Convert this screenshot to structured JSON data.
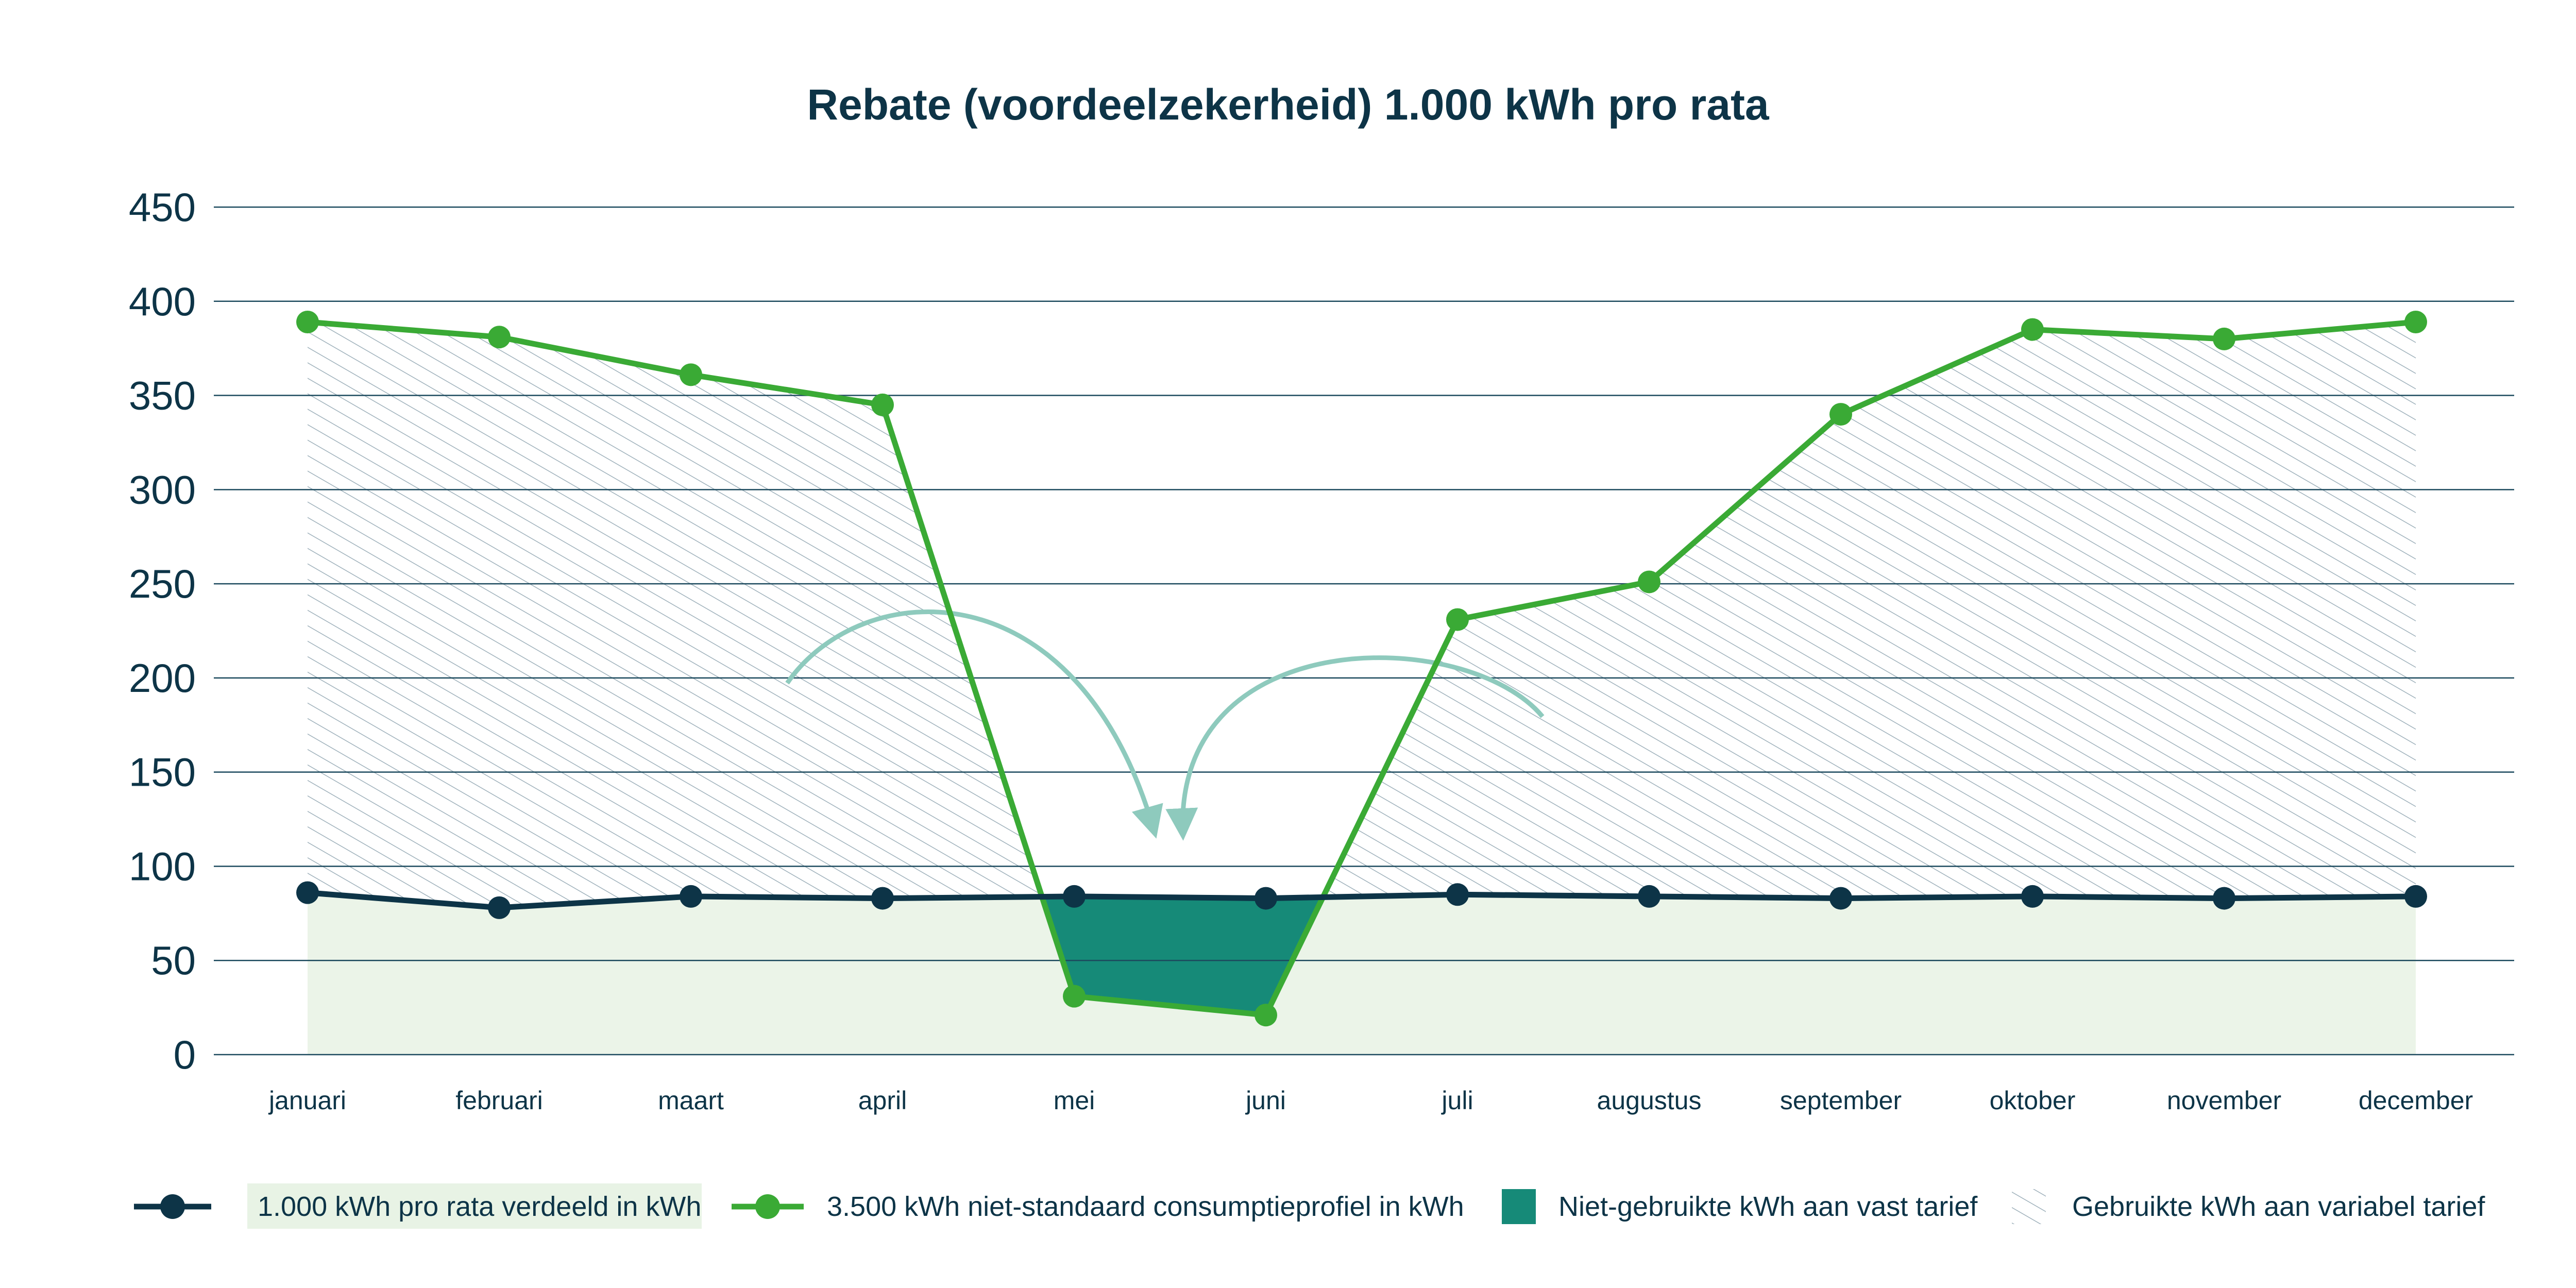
{
  "chart_data": {
    "type": "line",
    "title": "Rebate (voordeelzekerheid) 1.000 kWh pro rata",
    "xlabel": "",
    "ylabel": "",
    "ylim": [
      0,
      450
    ],
    "yticks": [
      0,
      50,
      100,
      150,
      200,
      250,
      300,
      350,
      400,
      450
    ],
    "categories": [
      "januari",
      "februari",
      "maart",
      "april",
      "mei",
      "juni",
      "juli",
      "augustus",
      "september",
      "oktober",
      "november",
      "december"
    ],
    "series": [
      {
        "name": "1.000 kWh pro rata verdeeld in kWh",
        "values": [
          86,
          78,
          84,
          83,
          84,
          83,
          85,
          84,
          83,
          84,
          83,
          84
        ],
        "color": "#0d3447"
      },
      {
        "name": "3.500 kWh niet-standaard consumptieprofiel in kWh",
        "values": [
          389,
          381,
          361,
          345,
          31,
          21,
          231,
          251,
          340,
          385,
          380,
          389
        ],
        "color": "#3aaa35"
      }
    ],
    "areas": [
      {
        "name": "Niet-gebruikte kWh aan vast tarief",
        "color": "#168a78"
      },
      {
        "name": "Gebruikte kWh aan variabel tarief",
        "pattern": "diagonal-hatch",
        "color": "#9fb1bb"
      }
    ],
    "legend_position": "bottom",
    "grid": true,
    "annotations": [
      {
        "type": "curved-arrow",
        "from": "april",
        "to": "mei",
        "color": "#8ecabd"
      },
      {
        "type": "curved-arrow",
        "from": "juli",
        "to": "juni",
        "color": "#8ecabd"
      }
    ],
    "colors": {
      "text": "#0d3447",
      "grid": "#1c4a5e",
      "base_fill": "#ebf4e8",
      "arrow": "#8ecabd",
      "legend_label_bg": "#e8f3e5"
    }
  }
}
